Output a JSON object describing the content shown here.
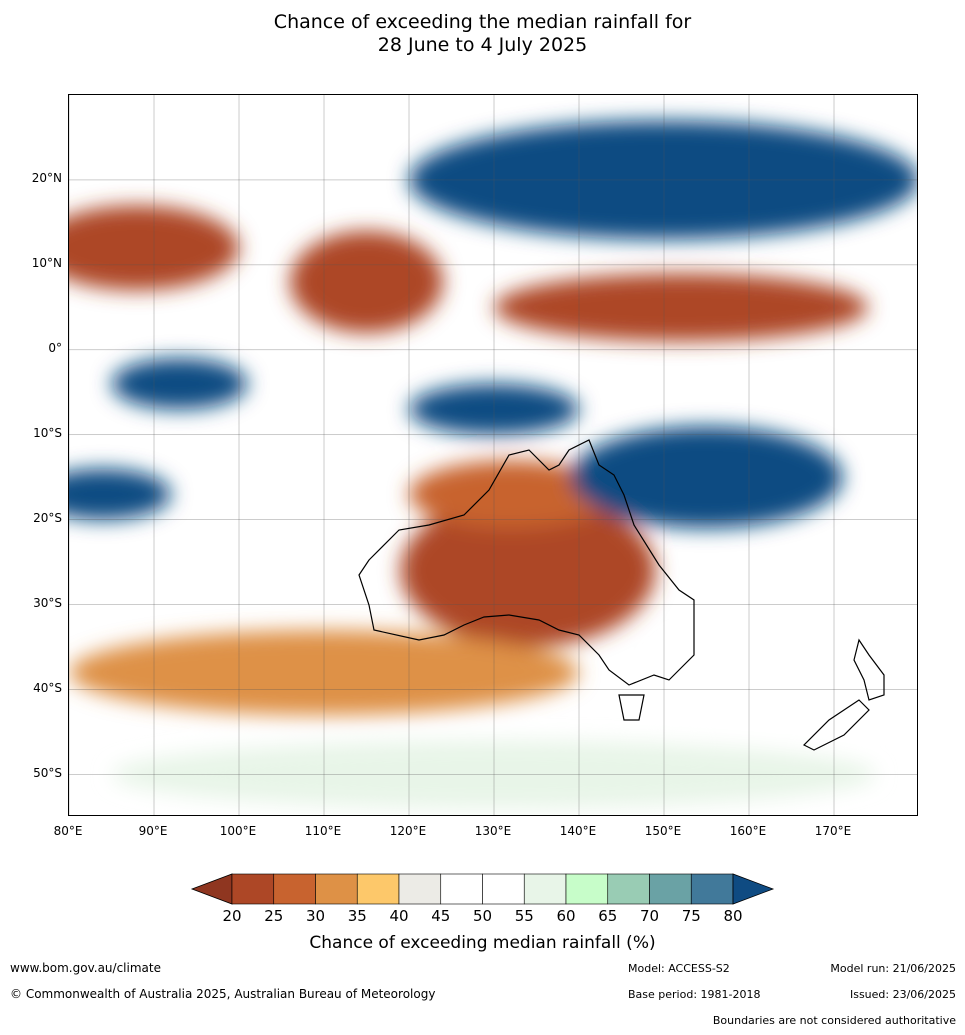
{
  "title": {
    "line1": "Chance of exceeding the median rainfall for",
    "line2": "28 June to 4 July 2025"
  },
  "map": {
    "extent": {
      "lon_min": 80,
      "lon_max": 180,
      "lat_min": -55,
      "lat_max": 30
    },
    "lat_ticks": [
      {
        "lat": 20,
        "label": "20°N"
      },
      {
        "lat": 10,
        "label": "10°N"
      },
      {
        "lat": 0,
        "label": "0°"
      },
      {
        "lat": -10,
        "label": "10°S"
      },
      {
        "lat": -20,
        "label": "20°S"
      },
      {
        "lat": -30,
        "label": "30°S"
      },
      {
        "lat": -40,
        "label": "40°S"
      },
      {
        "lat": -50,
        "label": "50°S"
      }
    ],
    "lon_ticks": [
      {
        "lon": 80,
        "label": "80°E"
      },
      {
        "lon": 90,
        "label": "90°E"
      },
      {
        "lon": 100,
        "label": "100°E"
      },
      {
        "lon": 110,
        "label": "110°E"
      },
      {
        "lon": 120,
        "label": "120°E"
      },
      {
        "lon": 130,
        "label": "130°E"
      },
      {
        "lon": 140,
        "label": "140°E"
      },
      {
        "lon": 150,
        "label": "150°E"
      },
      {
        "lon": 160,
        "label": "160°E"
      },
      {
        "lon": 170,
        "label": "170°E"
      }
    ],
    "regions": [
      {
        "name": "central-australia",
        "value": 20,
        "cx": 134,
        "cy": -26,
        "rx": 15,
        "ry": 9
      },
      {
        "name": "northern-australia",
        "value": 25,
        "cx": 132,
        "cy": -17,
        "rx": 12,
        "ry": 4
      },
      {
        "name": "southern-ocean-west",
        "value": 30,
        "cx": 110,
        "cy": -38,
        "rx": 30,
        "ry": 5
      },
      {
        "name": "bay-of-bengal",
        "value": 20,
        "cx": 88,
        "cy": 12,
        "rx": 12,
        "ry": 5
      },
      {
        "name": "south-china-sea",
        "value": 20,
        "cx": 115,
        "cy": 8,
        "rx": 9,
        "ry": 6
      },
      {
        "name": "equatorial-pacific",
        "value": 20,
        "cx": 152,
        "cy": 5,
        "rx": 22,
        "ry": 4
      },
      {
        "name": "philippine-sea",
        "value": 80,
        "cx": 150,
        "cy": 20,
        "rx": 30,
        "ry": 7
      },
      {
        "name": "coral-sea",
        "value": 80,
        "cx": 155,
        "cy": -15,
        "rx": 16,
        "ry": 6
      },
      {
        "name": "java-sea",
        "value": 80,
        "cx": 130,
        "cy": -7,
        "rx": 10,
        "ry": 3
      },
      {
        "name": "eastern-indian-ocean",
        "value": 80,
        "cx": 93,
        "cy": -4,
        "rx": 8,
        "ry": 3
      },
      {
        "name": "western-indian-ocean",
        "value": 80,
        "cx": 84,
        "cy": -17,
        "rx": 8,
        "ry": 3
      },
      {
        "name": "tasman-sea",
        "value": 45,
        "cx": 162,
        "cy": -40,
        "rx": 14,
        "ry": 8
      },
      {
        "name": "southern-ocean-south",
        "value": 55,
        "cx": 130,
        "cy": -50,
        "rx": 45,
        "ry": 4
      }
    ]
  },
  "colorbar": {
    "colors": [
      "#8f3620",
      "#ad4726",
      "#c8632f",
      "#de9146",
      "#fdc86a",
      "#ecebe6",
      "#ffffff",
      "#ffffff",
      "#e8f5e8",
      "#c7fdc9",
      "#99ccb4",
      "#6aa2a5",
      "#41799a",
      "#0f4b82"
    ],
    "ticks": [
      "20",
      "25",
      "30",
      "35",
      "40",
      "45",
      "50",
      "55",
      "60",
      "65",
      "70",
      "75",
      "80"
    ],
    "label": "Chance of exceeding median rainfall (%)"
  },
  "footer": {
    "website": "www.bom.gov.au/climate",
    "copyright": "© Commonwealth of Australia 2025, Australian Bureau of Meteorology",
    "model": "Model: ACCESS-S2",
    "base_period": "Base period: 1981-2018",
    "model_run": "Model run: 21/06/2025",
    "issued": "Issued: 23/06/2025",
    "disclaimer": "Boundaries are not considered authoritative"
  }
}
